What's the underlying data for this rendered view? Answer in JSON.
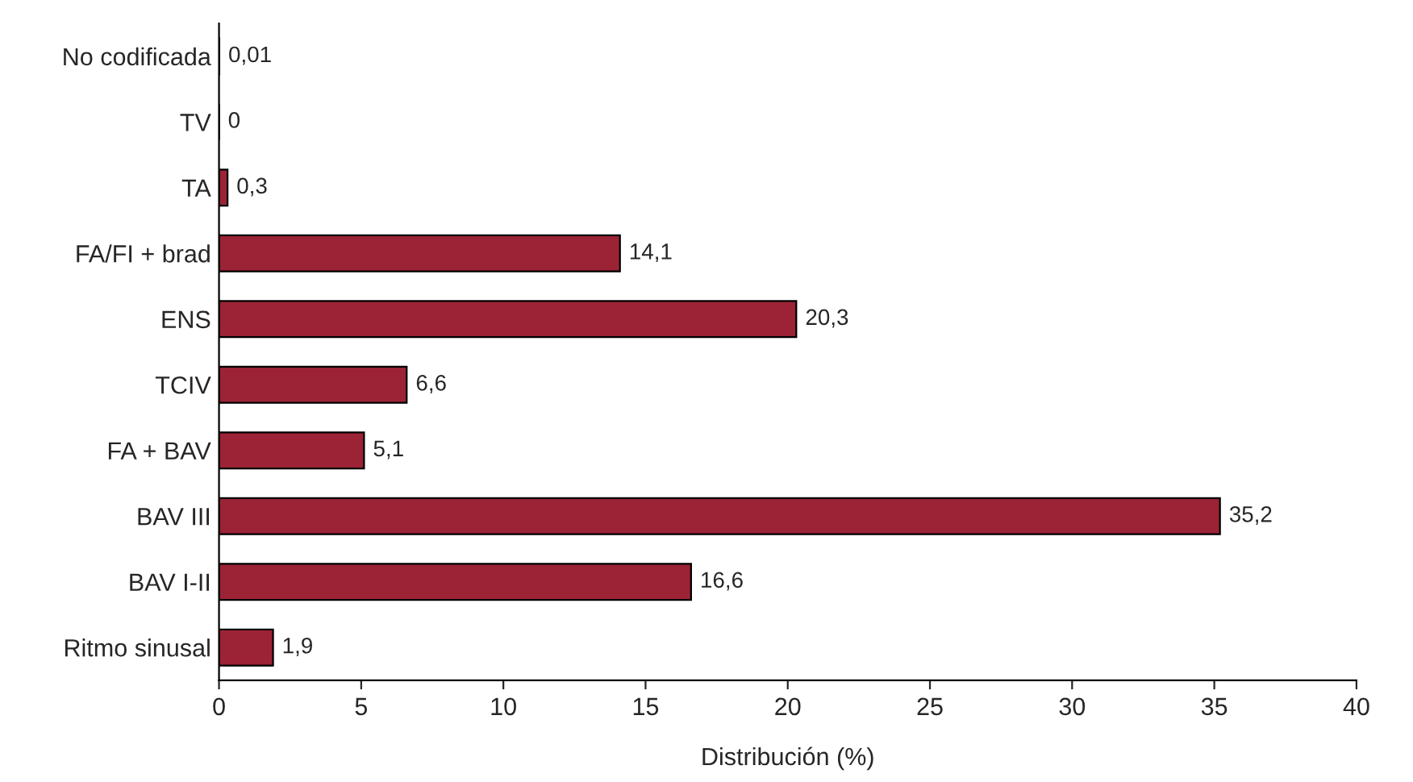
{
  "chart_data": {
    "type": "bar",
    "orientation": "horizontal",
    "xlabel": "Distribución (%)",
    "categories": [
      "No codificada",
      "TV",
      "TA",
      "FA/FI + brad",
      "ENS",
      "TCIV",
      "FA + BAV",
      "BAV III",
      "BAV I-II",
      "Ritmo sinusal"
    ],
    "values": [
      0.01,
      0,
      0.3,
      14.1,
      20.3,
      6.6,
      5.1,
      35.2,
      16.6,
      1.9
    ],
    "value_labels": [
      "0,01",
      "0",
      "0,3",
      "14,1",
      "20,3",
      "6,6",
      "5,1",
      "35,2",
      "16,6",
      "1,9"
    ],
    "color": "#9b2335",
    "xlim": [
      0,
      40
    ],
    "xticks": [
      0,
      5,
      10,
      15,
      20,
      25,
      30,
      35,
      40
    ],
    "grid": false,
    "legend": false
  }
}
